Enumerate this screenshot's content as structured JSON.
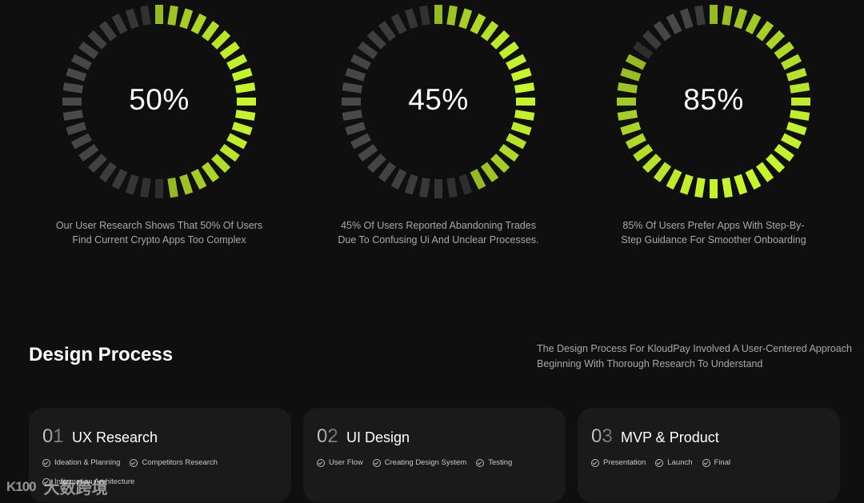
{
  "stats": [
    {
      "label": "50%",
      "value": 50,
      "caption_line1": "Our User Research Shows That 50% Of Users",
      "caption_line2": "Find Current Crypto Apps Too Complex"
    },
    {
      "label": "45%",
      "value": 45,
      "caption_line1": "45% Of Users Reported Abandoning Trades",
      "caption_line2": "Due To Confusing Ui And Unclear Processes."
    },
    {
      "label": "85%",
      "value": 85,
      "caption_line1": "85% Of Users Prefer Apps With Step-By-",
      "caption_line2": "Step Guidance For Smoother Onboarding"
    }
  ],
  "colors": {
    "accent": "#c6f432",
    "inactive": "#3f3f3f",
    "background": "#0f0f0f",
    "card": "#1a1a1a"
  },
  "section": {
    "title": "Design Process",
    "desc_line1": "The Design Process For KloudPay Involved A User-Centered Approach",
    "desc_line2": "Beginning With Thorough Research To Understand"
  },
  "cards": [
    {
      "num": "01",
      "title": "UX Research",
      "items": [
        "Ideation & Planning",
        "Competitors Research",
        "Information Architecture"
      ]
    },
    {
      "num": "02",
      "title": "UI Design",
      "items": [
        "User Flow",
        "Creating Design System",
        "Testing"
      ]
    },
    {
      "num": "03",
      "title": "MVP & Product",
      "items": [
        "Presentation",
        "Launch",
        "Final"
      ]
    }
  ],
  "watermark": {
    "icon": "K100",
    "text": "大数跨境"
  }
}
